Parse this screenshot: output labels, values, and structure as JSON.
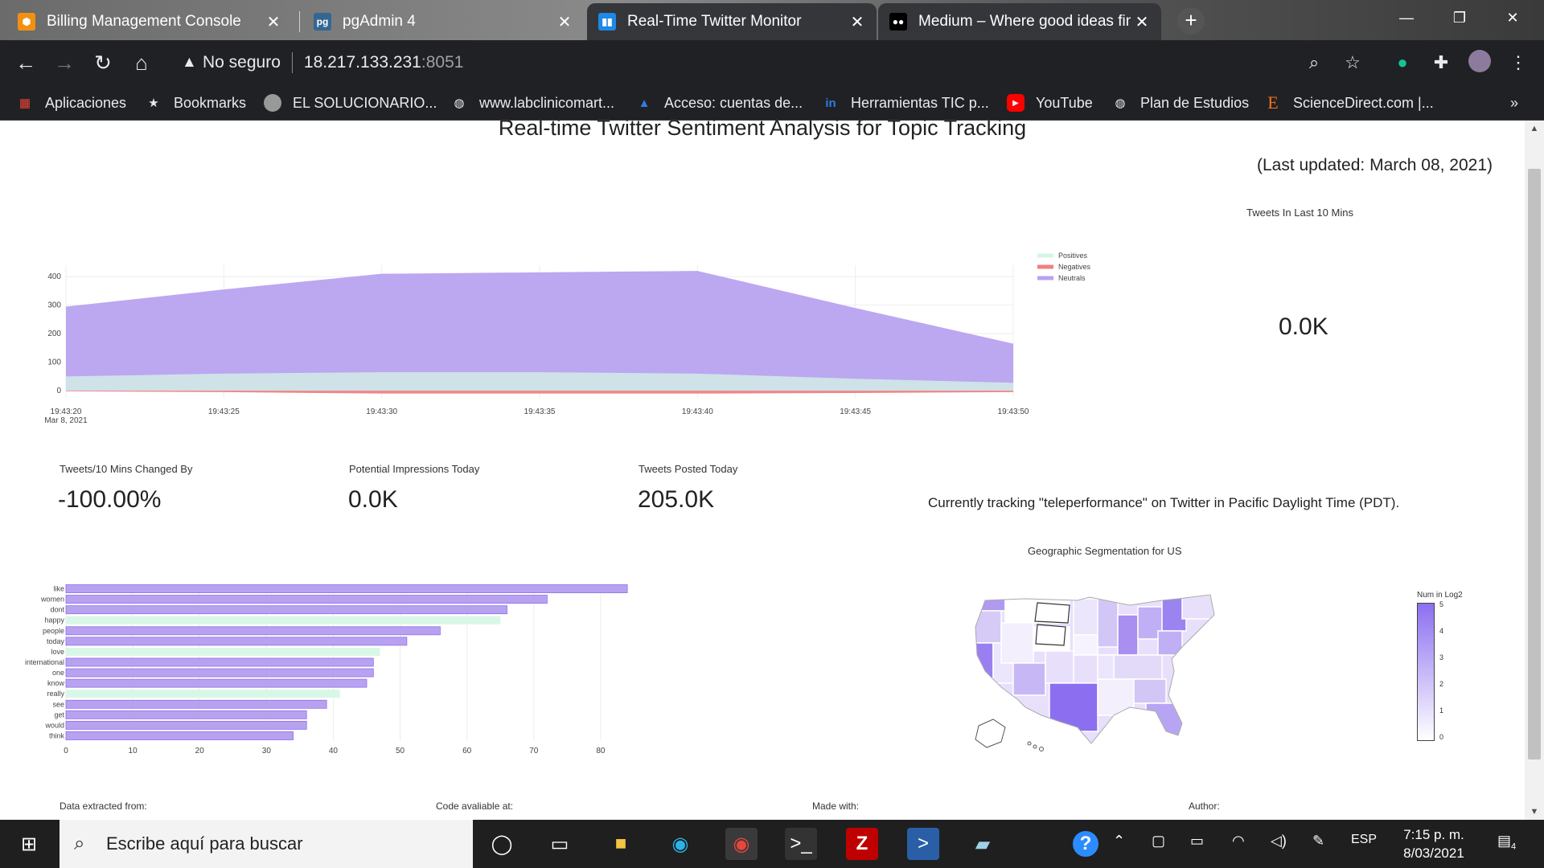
{
  "browser": {
    "tabs": [
      {
        "title": "Billing Management Console",
        "favicon": "aws-box-icon",
        "active": false
      },
      {
        "title": "pgAdmin 4",
        "favicon": "pgadmin-icon",
        "active": false
      },
      {
        "title": "Real-Time Twitter Monitor",
        "favicon": "chart-bars-icon",
        "active": true
      },
      {
        "title": "Medium – Where good ideas find",
        "favicon": "medium-icon",
        "active": false
      }
    ],
    "close_glyph": "✕",
    "new_tab_glyph": "+",
    "address": {
      "security": "No seguro",
      "host": "18.217.133.231",
      "port": ":8051"
    },
    "bookmarks": [
      {
        "label": "Aplicaciones",
        "icon": "apps-grid-icon"
      },
      {
        "label": "Bookmarks",
        "icon": "star-icon"
      },
      {
        "label": "EL SOLUCIONARIO...",
        "icon": "avatar-icon"
      },
      {
        "label": "www.labclinicomart...",
        "icon": "globe-icon"
      },
      {
        "label": "Acceso: cuentas de...",
        "icon": "azure-icon"
      },
      {
        "label": "Herramientas TIC p...",
        "icon": "in-icon"
      },
      {
        "label": "YouTube",
        "icon": "youtube-icon"
      },
      {
        "label": "Plan de Estudios",
        "icon": "globe-icon"
      },
      {
        "label": "ScienceDirect.com |...",
        "icon": "elsevier-icon"
      }
    ],
    "bookmarks_more": "»"
  },
  "dashboard": {
    "title": "Real-time Twitter Sentiment Analysis for Topic Tracking",
    "last_updated": "(Last updated: March 08, 2021)",
    "tweets_last_10_label": "Tweets In Last 10 Mins",
    "tweets_last_10_value": "0.0K",
    "changed_label": "Tweets/10 Mins Changed By",
    "changed_value": "-100.00%",
    "impressions_label": "Potential Impressions Today",
    "impressions_value": "0.0K",
    "posted_label": "Tweets Posted Today",
    "posted_value": "205.0K",
    "tracking_text": "Currently tracking \"teleperformance\" on Twitter in Pacific Daylight Time (PDT).",
    "map_title": "Geographic Segmentation for US",
    "map_colorbar_title": "Num in Log2",
    "map_colorbar_ticks": [
      "5",
      "4",
      "3",
      "2",
      "1",
      "0"
    ],
    "footer": [
      "Data extracted from:",
      "Code avaliable at:",
      "Made with:",
      "Author:"
    ]
  },
  "colors": {
    "positives": "#d4f5e4",
    "negatives": "#f08080",
    "neutrals": "#b8a2f0",
    "bar_purple": "#b8a2f0",
    "bar_green": "#d9f7e6"
  },
  "chart_data": [
    {
      "type": "area",
      "x": [
        "19:43:20",
        "19:43:25",
        "19:43:30",
        "19:43:35",
        "19:43:40",
        "19:43:45",
        "19:43:50"
      ],
      "x_ticklabels": [
        "19:43:20",
        "19:43:25",
        "19:43:30",
        "19:43:35",
        "19:43:40",
        "19:43:45",
        "19:43:50"
      ],
      "x_first_date": "Mar 8, 2021",
      "y_ticks": [
        0,
        100,
        200,
        300,
        400
      ],
      "ylim": [
        -25,
        440
      ],
      "series": [
        {
          "name": "Positives",
          "values": [
            50,
            60,
            65,
            65,
            60,
            42,
            28
          ]
        },
        {
          "name": "Negatives",
          "values": [
            -2,
            -5,
            -10,
            -10,
            -10,
            -8,
            -5
          ]
        },
        {
          "name": "Neutrals",
          "values": [
            295,
            355,
            410,
            415,
            420,
            290,
            165
          ]
        }
      ],
      "legend": "top-right"
    },
    {
      "type": "bar",
      "orientation": "horizontal",
      "categories": [
        "like",
        "women",
        "dont",
        "happy",
        "people",
        "today",
        "love",
        "international",
        "one",
        "know",
        "really",
        "see",
        "get",
        "would",
        "think"
      ],
      "values": [
        84,
        72,
        66,
        65,
        56,
        51,
        47,
        46,
        46,
        45,
        41,
        39,
        36,
        36,
        34
      ],
      "positive_flags": [
        false,
        false,
        false,
        true,
        false,
        false,
        true,
        false,
        false,
        false,
        true,
        false,
        false,
        false,
        false
      ],
      "x_ticks": [
        0,
        10,
        20,
        30,
        40,
        50,
        60,
        70,
        80
      ],
      "xlim": [
        0,
        90
      ]
    }
  ],
  "taskbar": {
    "search_placeholder": "Escribe aquí para buscar",
    "language": "ESP",
    "time": "7:15 p. m.",
    "date": "8/03/2021",
    "notification_count": "4"
  }
}
